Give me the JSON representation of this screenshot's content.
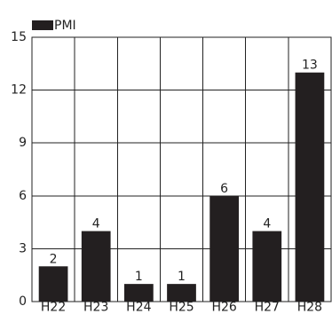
{
  "chart_data": {
    "type": "bar",
    "categories": [
      "H22",
      "H23",
      "H24",
      "H25",
      "H26",
      "H27",
      "H28"
    ],
    "series": [
      {
        "name": "PMI",
        "values": [
          2,
          4,
          1,
          1,
          6,
          4,
          13
        ],
        "color": "#231f20"
      }
    ],
    "yticks": [
      "0",
      "3",
      "6",
      "9",
      "12",
      "15"
    ],
    "ylim": [
      0,
      15
    ],
    "grid": true,
    "legend": "top-left"
  }
}
